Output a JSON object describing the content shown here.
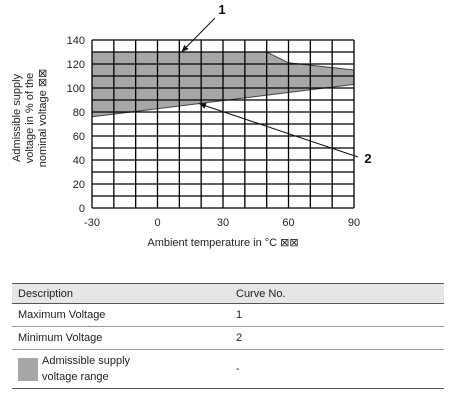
{
  "chart_data": {
    "type": "area",
    "xlabel": "Ambient temperature in °C ⊠⊠",
    "ylabel_lines": [
      "Admissible supply",
      "voltage in % of the",
      "nominal voltage ⊠⊠"
    ],
    "xlim": [
      -30,
      90
    ],
    "ylim": [
      0,
      140
    ],
    "x_ticks": [
      "-30",
      "0",
      "30",
      "60",
      "90"
    ],
    "x_tick_values": [
      -30,
      0,
      30,
      60,
      90
    ],
    "y_ticks": [
      "0",
      "20",
      "40",
      "60",
      "80",
      "100",
      "120",
      "140"
    ],
    "y_tick_values": [
      0,
      20,
      40,
      60,
      80,
      100,
      120,
      140
    ],
    "x_grid_step": 10,
    "y_grid_step": 10,
    "grid": true,
    "series": [
      {
        "curve": "1",
        "x": [
          -30,
          50,
          60,
          90
        ],
        "y": [
          130,
          130,
          121,
          115
        ]
      },
      {
        "curve": "2",
        "x": [
          -30,
          90
        ],
        "y": [
          76,
          103
        ]
      }
    ],
    "fill_color": "#a7a7a7",
    "callouts": [
      {
        "label": "1",
        "target_x": 11,
        "target_y": 130
      },
      {
        "label": "2",
        "target_x": 19,
        "target_y": 87
      }
    ]
  },
  "table": {
    "headers": [
      "Description",
      "Curve No."
    ],
    "rows": [
      {
        "description": "Maximum Voltage",
        "curve": "1"
      },
      {
        "description": "Minimum Voltage",
        "curve": "2"
      }
    ],
    "range_row": {
      "label_line1": "Admissible supply",
      "label_line2": "voltage range",
      "curve": "-"
    }
  }
}
